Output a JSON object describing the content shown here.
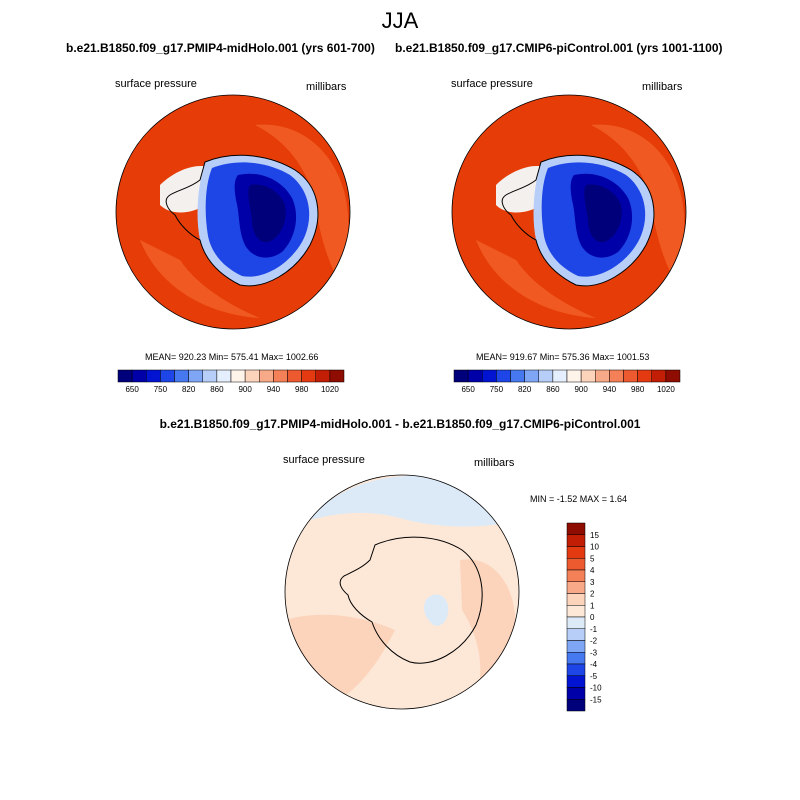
{
  "page": {
    "title": "JJA"
  },
  "chart_data": [
    {
      "type": "heatmap",
      "title": "b.e21.B1850.f09_g17.PMIP4-midHolo.001 (yrs 601-700)",
      "left_label": "surface pressure",
      "right_label": "millibars",
      "projection": "south polar stereographic",
      "stats": {
        "mean": "920.23",
        "min": "575.41",
        "max": "1002.66"
      },
      "stats_text": "MEAN= 920.23  Min= 575.41  Max= 1002.66",
      "colorbar": {
        "orientation": "horizontal",
        "tick_labels": [
          "650",
          "750",
          "820",
          "860",
          "900",
          "940",
          "980",
          "1020"
        ],
        "colors": [
          "#00007a",
          "#0000a8",
          "#0014d2",
          "#1e46e6",
          "#4678f0",
          "#7ea6f4",
          "#b6cef8",
          "#e4eefc",
          "#fff4ea",
          "#fcd4bc",
          "#f8aa88",
          "#f48058",
          "#ee5a30",
          "#e43a12",
          "#c21e06",
          "#8e0c00"
        ]
      }
    },
    {
      "type": "heatmap",
      "title": "b.e21.B1850.f09_g17.CMIP6-piControl.001 (yrs 1001-1100)",
      "left_label": "surface pressure",
      "right_label": "millibars",
      "projection": "south polar stereographic",
      "stats": {
        "mean": "919.67",
        "min": "575.36",
        "max": "1001.53"
      },
      "stats_text": "MEAN= 919.67  Min= 575.36  Max= 1001.53",
      "colorbar": {
        "orientation": "horizontal",
        "tick_labels": [
          "650",
          "750",
          "820",
          "860",
          "900",
          "940",
          "980",
          "1020"
        ],
        "colors": [
          "#00007a",
          "#0000a8",
          "#0014d2",
          "#1e46e6",
          "#4678f0",
          "#7ea6f4",
          "#b6cef8",
          "#e4eefc",
          "#fff4ea",
          "#fcd4bc",
          "#f8aa88",
          "#f48058",
          "#ee5a30",
          "#e43a12",
          "#c21e06",
          "#8e0c00"
        ]
      }
    },
    {
      "type": "heatmap",
      "title": "b.e21.B1850.f09_g17.PMIP4-midHolo.001 - b.e21.B1850.f09_g17.CMIP6-piControl.001",
      "left_label": "surface pressure",
      "right_label": "millibars",
      "projection": "south polar stereographic",
      "stats": {
        "min": "-1.52",
        "max": "1.64"
      },
      "stats_text": "MIN =  -1.52 MAX =   1.64",
      "colorbar": {
        "orientation": "vertical",
        "tick_labels": [
          "15",
          "10",
          "5",
          "4",
          "3",
          "2",
          "1",
          "0",
          "-1",
          "-2",
          "-3",
          "-4",
          "-5",
          "-10",
          "-15"
        ],
        "colors": [
          "#8e0c00",
          "#c21e06",
          "#e43a12",
          "#ee5a30",
          "#f48058",
          "#f8aa88",
          "#fcd4bc",
          "#fde8d8",
          "#dceaf8",
          "#b6cef8",
          "#7ea6f4",
          "#4678f0",
          "#1e46e6",
          "#0014d2",
          "#0000a8",
          "#00007a"
        ]
      }
    }
  ]
}
